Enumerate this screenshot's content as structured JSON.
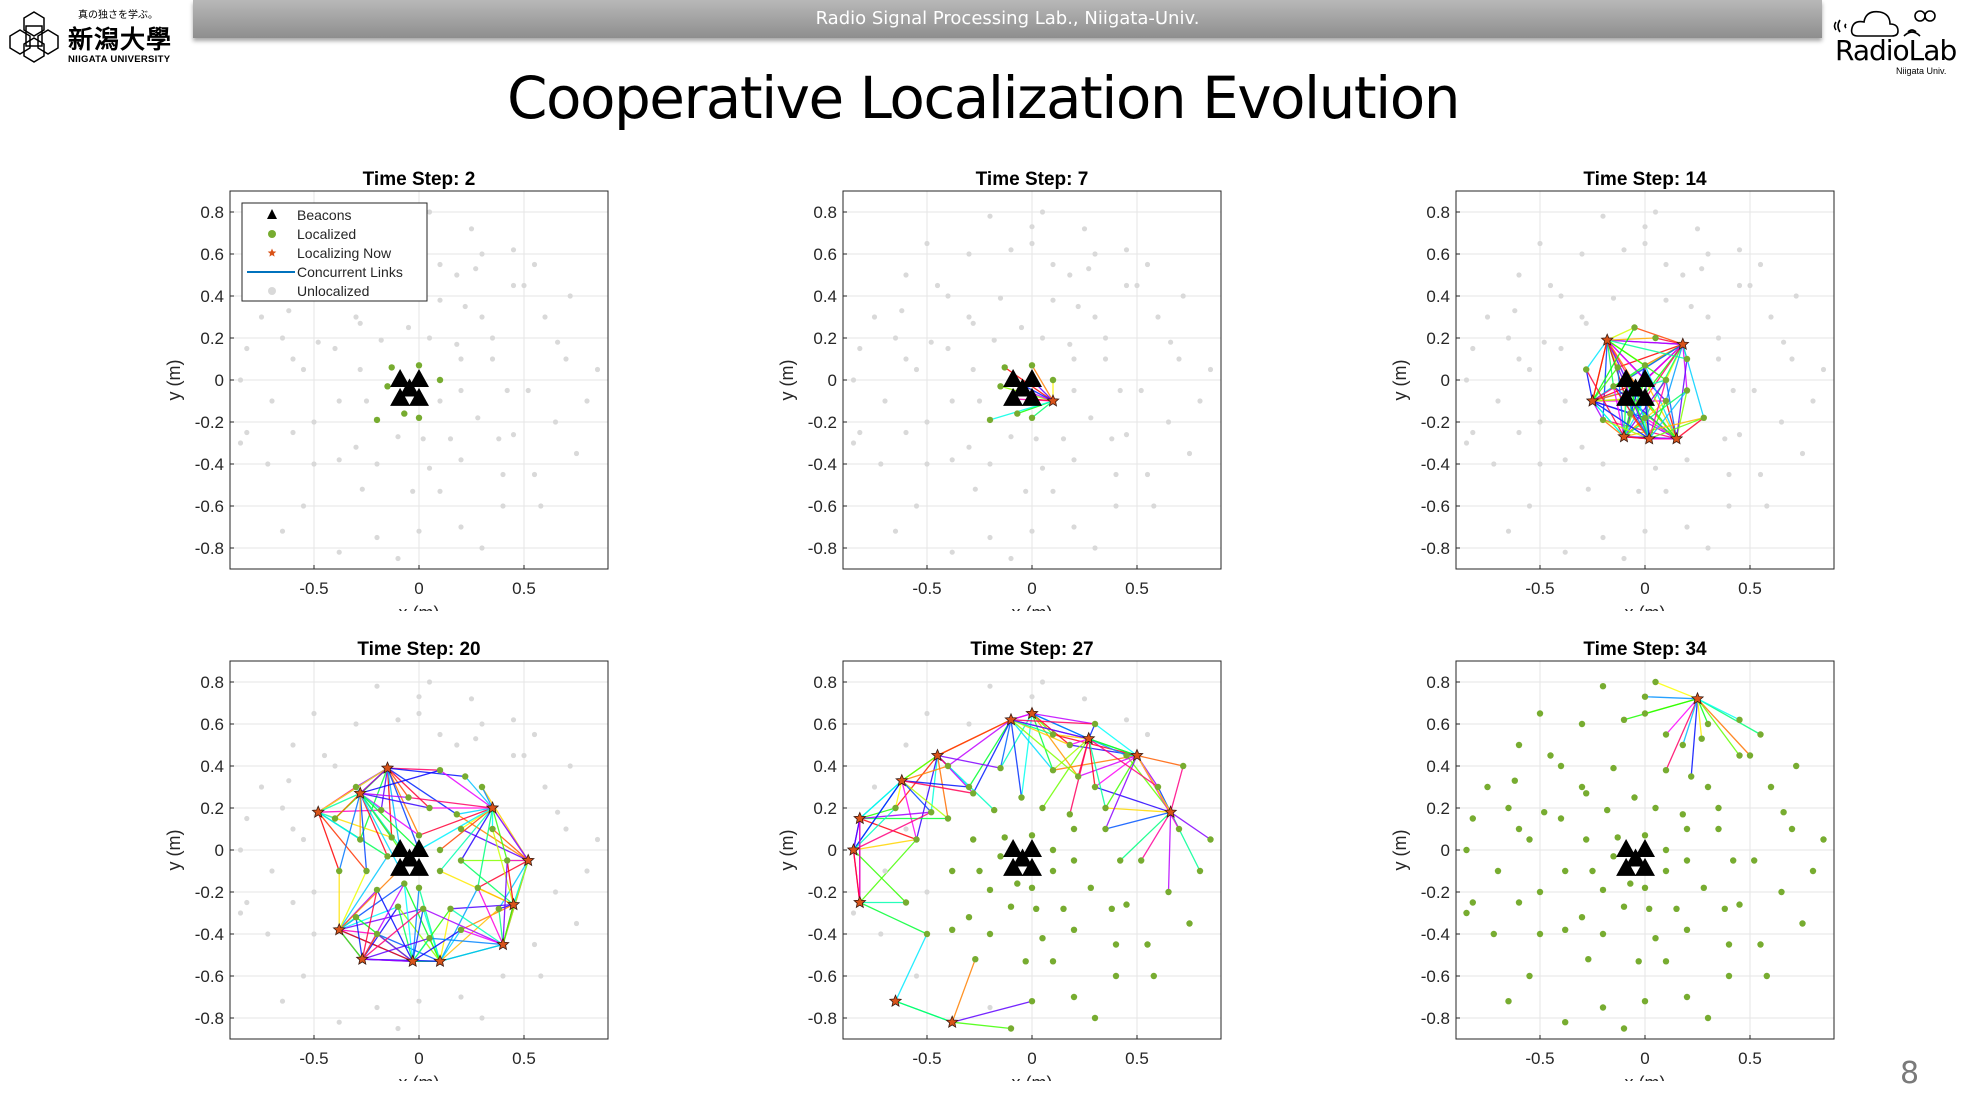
{
  "header": {
    "text": "Radio Signal Processing Lab., Niigata-Univ."
  },
  "logo_left": {
    "motto": "真の独さを学ぶ。",
    "name_kanji": "新潟大學",
    "name_en": "NIIGATA UNIVERSITY"
  },
  "logo_right": {
    "name": "RadioLab",
    "sub": "Niigata Univ."
  },
  "slide": {
    "title": "Cooperative Localization Evolution",
    "page_number": "8"
  },
  "colors": {
    "beacon": "#000000",
    "localized": "#77ac30",
    "localizing": "#d95319",
    "unlocalized": "#d9d9d9",
    "link_legend": "#0072bd"
  },
  "legend": {
    "items": [
      "Beacons",
      "Localized",
      "Localizing Now",
      "Concurrent Links",
      "Unlocalized"
    ]
  },
  "network": {
    "beacons": [
      [
        -0.09,
        0.0
      ],
      [
        0.0,
        0.0
      ],
      [
        -0.045,
        -0.045
      ],
      [
        -0.09,
        -0.09
      ],
      [
        0.0,
        -0.09
      ]
    ],
    "nodes_xy_tlocalized": [
      [
        -0.13,
        0.06,
        1
      ],
      [
        0.0,
        0.07,
        1
      ],
      [
        0.1,
        0.0,
        1
      ],
      [
        -0.15,
        -0.03,
        1
      ],
      [
        -0.07,
        -0.16,
        1
      ],
      [
        0.0,
        -0.18,
        1
      ],
      [
        -0.2,
        -0.19,
        1
      ],
      [
        0.1,
        -0.1,
        7
      ],
      [
        0.18,
        0.17,
        14
      ],
      [
        -0.18,
        0.19,
        14
      ],
      [
        0.2,
        -0.05,
        12
      ],
      [
        -0.25,
        -0.1,
        14
      ],
      [
        0.05,
        0.2,
        11
      ],
      [
        -0.05,
        0.25,
        13
      ],
      [
        0.15,
        -0.28,
        14
      ],
      [
        -0.1,
        -0.27,
        14
      ],
      [
        0.2,
        0.1,
        12
      ],
      [
        -0.28,
        0.05,
        13
      ],
      [
        0.02,
        -0.28,
        14
      ],
      [
        0.28,
        -0.18,
        13
      ],
      [
        0.35,
        0.1,
        17
      ],
      [
        0.3,
        0.3,
        18
      ],
      [
        -0.3,
        0.3,
        18
      ],
      [
        -0.38,
        -0.1,
        17
      ],
      [
        0.1,
        0.38,
        16
      ],
      [
        -0.15,
        0.39,
        20
      ],
      [
        0.38,
        -0.28,
        19
      ],
      [
        -0.3,
        -0.32,
        18
      ],
      [
        0.05,
        -0.42,
        19
      ],
      [
        -0.4,
        0.15,
        17
      ],
      [
        0.42,
        -0.05,
        18
      ],
      [
        0.2,
        -0.38,
        17
      ],
      [
        -0.2,
        -0.4,
        19
      ],
      [
        0.22,
        0.35,
        17
      ],
      [
        -0.48,
        0.18,
        20
      ],
      [
        -0.38,
        -0.38,
        20
      ],
      [
        0.52,
        -0.05,
        20
      ],
      [
        0.45,
        -0.26,
        20
      ],
      [
        -0.28,
        0.27,
        20
      ],
      [
        0.35,
        0.2,
        20
      ],
      [
        0.1,
        -0.53,
        20
      ],
      [
        -0.03,
        -0.53,
        20
      ],
      [
        0.4,
        -0.45,
        20
      ],
      [
        -0.27,
        -0.52,
        20
      ],
      [
        0.18,
        0.5,
        21
      ],
      [
        0.6,
        0.3,
        23
      ],
      [
        0.7,
        0.1,
        24
      ],
      [
        0.65,
        -0.2,
        23
      ],
      [
        0.55,
        -0.45,
        22
      ],
      [
        0.4,
        -0.6,
        24
      ],
      [
        0.2,
        -0.7,
        25
      ],
      [
        0.0,
        -0.72,
        26
      ],
      [
        0.75,
        -0.35,
        25
      ],
      [
        0.45,
        0.45,
        23
      ],
      [
        0.3,
        0.6,
        24
      ],
      [
        0.8,
        -0.1,
        25
      ],
      [
        0.58,
        -0.6,
        26
      ],
      [
        0.3,
        -0.8,
        26
      ],
      [
        -0.1,
        -0.85,
        26
      ],
      [
        0.85,
        0.05,
        25
      ],
      [
        0.1,
        0.55,
        22
      ],
      [
        0.72,
        0.4,
        26
      ],
      [
        0.66,
        0.18,
        27
      ],
      [
        0.5,
        0.45,
        27
      ],
      [
        0.27,
        0.53,
        27
      ],
      [
        0.0,
        0.65,
        27
      ],
      [
        -0.1,
        0.62,
        27
      ],
      [
        -0.45,
        0.45,
        27
      ],
      [
        -0.62,
        0.33,
        27
      ],
      [
        -0.82,
        0.15,
        27
      ],
      [
        -0.85,
        0.0,
        27
      ],
      [
        -0.82,
        -0.25,
        27
      ],
      [
        -0.65,
        -0.72,
        27
      ],
      [
        -0.38,
        -0.82,
        27
      ],
      [
        -0.55,
        0.05,
        22
      ],
      [
        -0.5,
        -0.4,
        23
      ],
      [
        -0.6,
        -0.25,
        24
      ],
      [
        -0.4,
        0.4,
        22
      ],
      [
        -0.65,
        0.2,
        25
      ],
      [
        -0.6,
        0.5,
        30
      ],
      [
        -0.75,
        0.3,
        29
      ],
      [
        -0.7,
        -0.1,
        30
      ],
      [
        -0.72,
        -0.4,
        29
      ],
      [
        -0.55,
        -0.6,
        30
      ],
      [
        -0.2,
        -0.75,
        28
      ],
      [
        -0.6,
        0.1,
        28
      ],
      [
        -0.5,
        -0.2,
        28
      ],
      [
        -0.3,
        0.6,
        31
      ],
      [
        -0.2,
        0.78,
        33
      ],
      [
        0.05,
        0.8,
        33
      ],
      [
        -0.5,
        0.65,
        32
      ],
      [
        -0.85,
        -0.3,
        31
      ],
      [
        0.55,
        0.55,
        33
      ],
      [
        0.45,
        0.62,
        33
      ],
      [
        0.0,
        0.73,
        33
      ],
      [
        0.25,
        0.72,
        34
      ]
    ]
  },
  "chart_data": [
    {
      "type": "scatter",
      "title": "Time Step: 2",
      "step": 2,
      "xlabel": "x (m)",
      "ylabel": "y (m)",
      "xlim": [
        -0.9,
        0.9
      ],
      "ylim": [
        -0.9,
        0.9
      ],
      "xticks": [
        -0.5,
        0,
        0.5
      ],
      "xtick_labels": [
        "-0.5",
        "0",
        "0.5"
      ],
      "yticks": [
        0.8,
        0.6,
        0.4,
        0.2,
        0,
        -0.2,
        -0.4,
        -0.6,
        -0.8
      ],
      "ytick_labels": [
        "0.8",
        "0.6",
        "0.4",
        "0.2",
        "0",
        "-0.2",
        "-0.4",
        "-0.6",
        "-0.8"
      ],
      "grid": true,
      "legend": "top-left"
    },
    {
      "type": "scatter",
      "title": "Time Step: 7",
      "step": 7,
      "xlabel": "x (m)",
      "ylabel": "y (m)",
      "xlim": [
        -0.9,
        0.9
      ],
      "ylim": [
        -0.9,
        0.9
      ],
      "xticks": [
        -0.5,
        0,
        0.5
      ],
      "xtick_labels": [
        "-0.5",
        "0",
        "0.5"
      ],
      "yticks": [
        0.8,
        0.6,
        0.4,
        0.2,
        0,
        -0.2,
        -0.4,
        -0.6,
        -0.8
      ],
      "ytick_labels": [
        "0.8",
        "0.6",
        "0.4",
        "0.2",
        "0",
        "-0.2",
        "-0.4",
        "-0.6",
        "-0.8"
      ],
      "grid": true,
      "legend": "none"
    },
    {
      "type": "scatter",
      "title": "Time Step: 14",
      "step": 14,
      "xlabel": "x (m)",
      "ylabel": "y (m)",
      "xlim": [
        -0.9,
        0.9
      ],
      "ylim": [
        -0.9,
        0.9
      ],
      "xticks": [
        -0.5,
        0,
        0.5
      ],
      "xtick_labels": [
        "-0.5",
        "0",
        "0.5"
      ],
      "yticks": [
        0.8,
        0.6,
        0.4,
        0.2,
        0,
        -0.2,
        -0.4,
        -0.6,
        -0.8
      ],
      "ytick_labels": [
        "0.8",
        "0.6",
        "0.4",
        "0.2",
        "0",
        "-0.2",
        "-0.4",
        "-0.6",
        "-0.8"
      ],
      "grid": true,
      "legend": "none"
    },
    {
      "type": "scatter",
      "title": "Time Step: 20",
      "step": 20,
      "xlabel": "x (m)",
      "ylabel": "y (m)",
      "xlim": [
        -0.9,
        0.9
      ],
      "ylim": [
        -0.9,
        0.9
      ],
      "xticks": [
        -0.5,
        0,
        0.5
      ],
      "xtick_labels": [
        "-0.5",
        "0",
        "0.5"
      ],
      "yticks": [
        0.8,
        0.6,
        0.4,
        0.2,
        0,
        -0.2,
        -0.4,
        -0.6,
        -0.8
      ],
      "ytick_labels": [
        "0.8",
        "0.6",
        "0.4",
        "0.2",
        "0",
        "-0.2",
        "-0.4",
        "-0.6",
        "-0.8"
      ],
      "grid": true,
      "legend": "none"
    },
    {
      "type": "scatter",
      "title": "Time Step: 27",
      "step": 27,
      "xlabel": "x (m)",
      "ylabel": "y (m)",
      "xlim": [
        -0.9,
        0.9
      ],
      "ylim": [
        -0.9,
        0.9
      ],
      "xticks": [
        -0.5,
        0,
        0.5
      ],
      "xtick_labels": [
        "-0.5",
        "0",
        "0.5"
      ],
      "yticks": [
        0.8,
        0.6,
        0.4,
        0.2,
        0,
        -0.2,
        -0.4,
        -0.6,
        -0.8
      ],
      "ytick_labels": [
        "0.8",
        "0.6",
        "0.4",
        "0.2",
        "0",
        "-0.2",
        "-0.4",
        "-0.6",
        "-0.8"
      ],
      "grid": true,
      "legend": "none"
    },
    {
      "type": "scatter",
      "title": "Time Step: 34",
      "step": 34,
      "xlabel": "x (m)",
      "ylabel": "y (m)",
      "xlim": [
        -0.9,
        0.9
      ],
      "ylim": [
        -0.9,
        0.9
      ],
      "xticks": [
        -0.5,
        0,
        0.5
      ],
      "xtick_labels": [
        "-0.5",
        "0",
        "0.5"
      ],
      "yticks": [
        0.8,
        0.6,
        0.4,
        0.2,
        0,
        -0.2,
        -0.4,
        -0.6,
        -0.8
      ],
      "ytick_labels": [
        "0.8",
        "0.6",
        "0.4",
        "0.2",
        "0",
        "-0.2",
        "-0.4",
        "-0.6",
        "-0.8"
      ],
      "grid": true,
      "legend": "none"
    }
  ]
}
